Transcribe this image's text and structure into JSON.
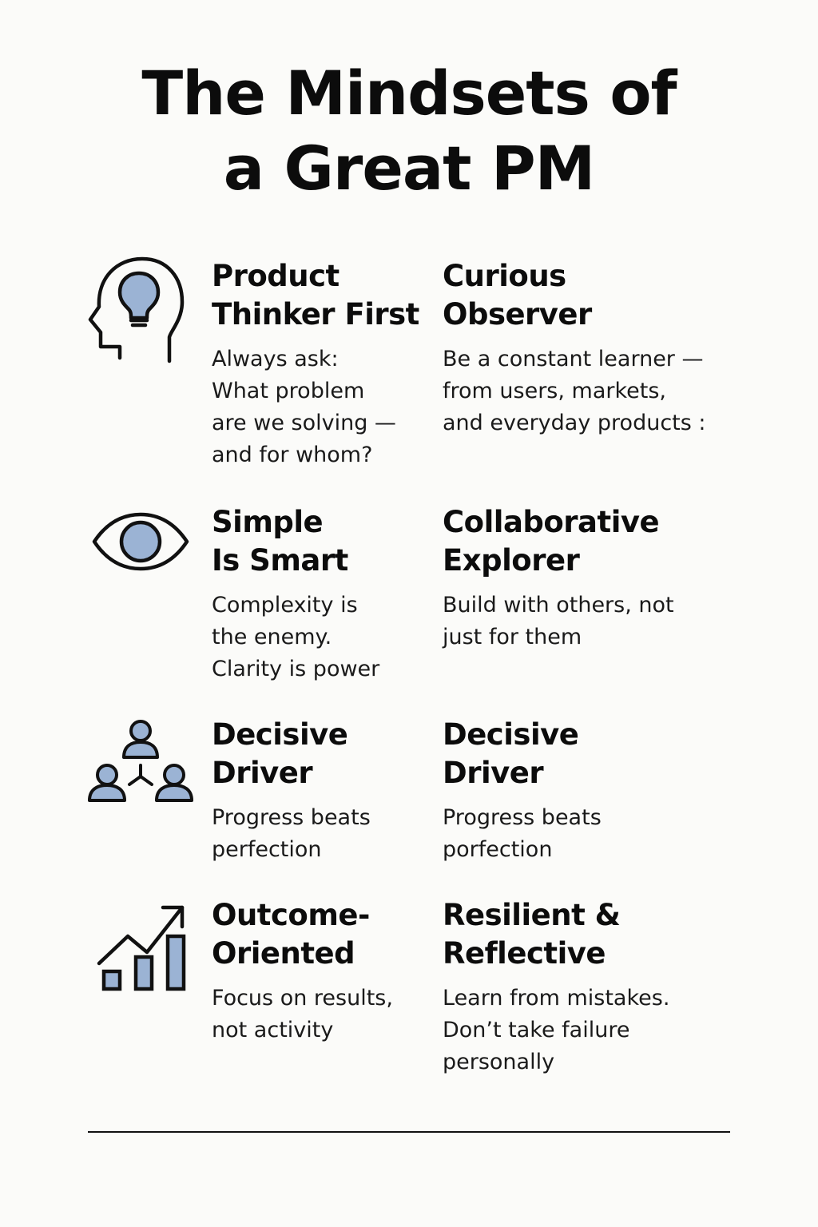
{
  "title": {
    "line1": "The Mindsets of",
    "line2": "a Great PM"
  },
  "icons": {
    "row1": "head-lightbulb-icon",
    "row2": "eye-icon",
    "row3": "team-network-icon",
    "row4": "growth-chart-icon"
  },
  "colors": {
    "accent": "#9bb3d4",
    "stroke": "#111111",
    "background": "#fbfbf9"
  },
  "cards": [
    {
      "heading": [
        "Product",
        "Thinker First"
      ],
      "desc": [
        "Always ask:",
        "What problem",
        "are we solving —",
        "and for whom?"
      ]
    },
    {
      "heading": [
        "Curious",
        "Observer"
      ],
      "desc": [
        "Be a constant learner —",
        "from users, markets,",
        "and everyday products :"
      ]
    },
    {
      "heading": [
        "Simple",
        "Is Smart"
      ],
      "desc": [
        "Complexity is",
        "the enemy.",
        "Clarity is power"
      ]
    },
    {
      "heading": [
        "Collaborative",
        "Explorer"
      ],
      "desc": [
        "Build with others, not",
        "just for them"
      ]
    },
    {
      "heading": [
        "Decisive",
        "Driver"
      ],
      "desc": [
        "Progress beats",
        "perfection"
      ]
    },
    {
      "heading": [
        "Decisive",
        "Driver"
      ],
      "desc": [
        "Progress beats",
        "porfection"
      ]
    },
    {
      "heading": [
        "Outcome-",
        "Oriented"
      ],
      "desc": [
        "Focus on results,",
        "not activity"
      ]
    },
    {
      "heading": [
        "Resilient &",
        "Reflective"
      ],
      "desc": [
        "Learn from mistakes.",
        "Don’t take failure",
        "personally"
      ]
    }
  ]
}
